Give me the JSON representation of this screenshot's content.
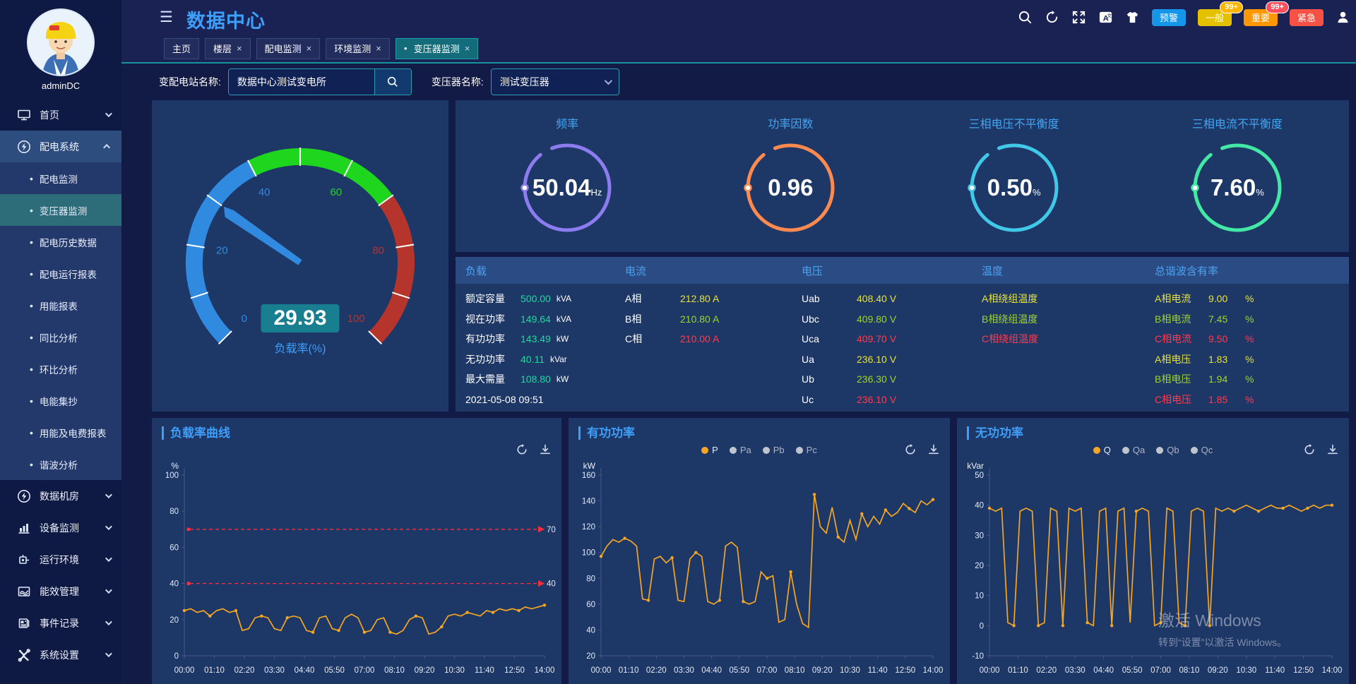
{
  "theme": {
    "accent_blue": "#3f9ef8",
    "panel_bg": "#1d3766",
    "teal": "#17949e",
    "line_orange": "#f5a623",
    "ref_red": "#ff2e3b"
  },
  "header": {
    "title": "数据中心",
    "icons": [
      "menu-collapse",
      "search",
      "refresh",
      "fullscreen",
      "translate",
      "theme-shirt",
      "user"
    ],
    "alarm_buttons": [
      {
        "label": "预警",
        "color": "#1596e8",
        "badge": ""
      },
      {
        "label": "一般",
        "color": "#e3c000",
        "badge": "99+"
      },
      {
        "label": "重要",
        "color": "#ff9800",
        "badge": "99+"
      },
      {
        "label": "紧急",
        "color": "#f55145",
        "badge": ""
      }
    ]
  },
  "tabs": [
    {
      "label": "主页",
      "closable": false,
      "active": false
    },
    {
      "label": "楼层",
      "closable": true,
      "active": false
    },
    {
      "label": "配电监测",
      "closable": true,
      "active": false
    },
    {
      "label": "环境监测",
      "closable": true,
      "active": false
    },
    {
      "label": "变压器监测",
      "closable": true,
      "active": true
    }
  ],
  "filters": {
    "station_label": "变配电站名称:",
    "station_value": "数据中心测试变电所",
    "transformer_label": "变压器名称:",
    "transformer_value": "测试变压器"
  },
  "sidebar": {
    "username": "adminDC",
    "items": [
      {
        "label": "首页"
      },
      {
        "label": "配电系统"
      },
      {
        "label": "配电监测"
      },
      {
        "label": "变压器监测"
      },
      {
        "label": "配电历史数据"
      },
      {
        "label": "配电运行报表"
      },
      {
        "label": "用能报表"
      },
      {
        "label": "同比分析"
      },
      {
        "label": "环比分析"
      },
      {
        "label": "电能集抄"
      },
      {
        "label": "用能及电费报表"
      },
      {
        "label": "谐波分析"
      },
      {
        "label": "数据机房"
      },
      {
        "label": "设备监测"
      },
      {
        "label": "运行环境"
      },
      {
        "label": "能效管理"
      },
      {
        "label": "事件记录"
      },
      {
        "label": "系统设置"
      }
    ]
  },
  "gauge": {
    "value": "29.93",
    "label": "负载率(%)",
    "ticks": [
      0,
      20,
      40,
      60,
      80,
      100
    ],
    "segments": [
      {
        "to": 40,
        "color": "#2f8ae0"
      },
      {
        "to": 70,
        "color": "#1fd61f"
      },
      {
        "to": 100,
        "color": "#b5352c"
      }
    ]
  },
  "rings": [
    {
      "title": "频率",
      "value": "50.04",
      "unit": "Hz",
      "color": "#8d7bf0"
    },
    {
      "title": "功率因数",
      "value": "0.96",
      "unit": "",
      "color": "#ff8a50"
    },
    {
      "title": "三相电压不平衡度",
      "value": "0.50",
      "unit": "%",
      "color": "#41c7e8"
    },
    {
      "title": "三相电流不平衡度",
      "value": "7.60",
      "unit": "%",
      "color": "#42e8a4"
    }
  ],
  "table": {
    "headers": [
      "负载",
      "电流",
      "电压",
      "温度",
      "总谐波含有率"
    ],
    "load_rows": [
      {
        "label": "额定容量",
        "value": "500.00",
        "unit": "kVA"
      },
      {
        "label": "视在功率",
        "value": "149.64",
        "unit": "kVA"
      },
      {
        "label": "有功功率",
        "value": "143.49",
        "unit": "kW"
      },
      {
        "label": "无功功率",
        "value": "40.11",
        "unit": "kVar"
      },
      {
        "label": "最大需量",
        "value": "108.80",
        "unit": "kW"
      },
      {
        "label": "",
        "value": "2021-05-08 09:51",
        "unit": ""
      }
    ],
    "current_rows": [
      {
        "label": "A相",
        "value": "212.80 A"
      },
      {
        "label": "B相",
        "value": "210.80 A"
      },
      {
        "label": "C相",
        "value": "210.00 A"
      }
    ],
    "voltage_rows": [
      {
        "label": "Uab",
        "value": "408.40 V"
      },
      {
        "label": "Ubc",
        "value": "409.80 V"
      },
      {
        "label": "Uca",
        "value": "409.70 V"
      },
      {
        "label": "Ua",
        "value": "236.10 V"
      },
      {
        "label": "Ub",
        "value": "236.30 V"
      },
      {
        "label": "Uc",
        "value": "236.10 V"
      }
    ],
    "temp_rows": [
      {
        "label": "A相绕组温度"
      },
      {
        "label": "B相绕组温度"
      },
      {
        "label": "C相绕组温度"
      }
    ],
    "thd_rows": [
      {
        "label": "A相电流",
        "value": "9.00",
        "unit": "%"
      },
      {
        "label": "B相电流",
        "value": "7.45",
        "unit": "%"
      },
      {
        "label": "C相电流",
        "value": "9.50",
        "unit": "%"
      },
      {
        "label": "A相电压",
        "value": "1.83",
        "unit": "%"
      },
      {
        "label": "B相电压",
        "value": "1.94",
        "unit": "%"
      },
      {
        "label": "C相电压",
        "value": "1.85",
        "unit": "%"
      }
    ]
  },
  "chart_data": [
    {
      "type": "line",
      "title": "负载率曲线",
      "ylabel": "%",
      "ylim": [
        0,
        100
      ],
      "yticks": [
        0,
        20,
        40,
        60,
        80,
        100
      ],
      "x_labels": [
        "00:00",
        "01:10",
        "02:20",
        "03:30",
        "04:40",
        "05:50",
        "07:00",
        "08:10",
        "09:20",
        "10:30",
        "11:40",
        "12:50",
        "14:00"
      ],
      "ref_lines": [
        {
          "value": 70,
          "label": "70"
        },
        {
          "value": 40,
          "label": "40"
        }
      ],
      "series": [
        {
          "name": "负载率",
          "color": "#f5a623",
          "values": [
            25,
            26,
            24,
            25,
            22,
            25,
            26,
            24,
            25,
            14,
            15,
            21,
            22,
            21,
            15,
            14,
            21,
            22,
            21,
            14,
            13,
            21,
            22,
            15,
            14,
            21,
            23,
            21,
            13,
            14,
            20,
            21,
            13,
            12,
            14,
            20,
            22,
            21,
            12,
            13,
            16,
            22,
            23,
            22,
            24,
            23,
            22,
            25,
            24,
            26,
            25,
            26,
            25,
            27,
            26,
            27,
            28
          ]
        }
      ]
    },
    {
      "type": "line",
      "title": "有功功率",
      "ylabel": "kW",
      "ylim": [
        20,
        160
      ],
      "yticks": [
        20,
        40,
        60,
        80,
        100,
        120,
        140,
        160
      ],
      "x_labels": [
        "00:00",
        "01:10",
        "02:20",
        "03:30",
        "04:40",
        "05:50",
        "07:00",
        "08:10",
        "09:20",
        "10:30",
        "11:40",
        "12:50",
        "14:00"
      ],
      "legend": [
        {
          "label": "P",
          "active": true
        },
        {
          "label": "Pa",
          "active": false
        },
        {
          "label": "Pb",
          "active": false
        },
        {
          "label": "Pc",
          "active": false
        }
      ],
      "series": [
        {
          "name": "P",
          "color": "#f5a623",
          "values": [
            97,
            105,
            110,
            108,
            111,
            109,
            105,
            64,
            63,
            95,
            97,
            92,
            96,
            63,
            62,
            95,
            100,
            97,
            62,
            60,
            63,
            105,
            108,
            104,
            62,
            60,
            62,
            85,
            80,
            82,
            46,
            48,
            85,
            60,
            45,
            42,
            145,
            120,
            115,
            135,
            112,
            108,
            125,
            110,
            130,
            120,
            128,
            122,
            133,
            128,
            131,
            138,
            134,
            131,
            140,
            137,
            141
          ]
        }
      ]
    },
    {
      "type": "line",
      "title": "无功功率",
      "ylabel": "kVar",
      "ylim": [
        -10,
        50
      ],
      "yticks": [
        -10,
        0,
        10,
        20,
        30,
        40,
        50
      ],
      "x_labels": [
        "00:00",
        "01:10",
        "02:20",
        "03:30",
        "04:40",
        "05:50",
        "07:00",
        "08:10",
        "09:20",
        "10:30",
        "11:40",
        "12:50",
        "14:00"
      ],
      "legend": [
        {
          "label": "Q",
          "active": true
        },
        {
          "label": "Qa",
          "active": false
        },
        {
          "label": "Qb",
          "active": false
        },
        {
          "label": "Qc",
          "active": false
        }
      ],
      "series": [
        {
          "name": "Q",
          "color": "#f5a623",
          "values": [
            39,
            38,
            39,
            1,
            0,
            38,
            39,
            38,
            0,
            1,
            39,
            38,
            0,
            39,
            38,
            39,
            1,
            0,
            38,
            39,
            0,
            38,
            39,
            1,
            38,
            39,
            38,
            0,
            1,
            39,
            38,
            1,
            0,
            38,
            39,
            38,
            0,
            39,
            38,
            39,
            38,
            39,
            40,
            39,
            38,
            39,
            40,
            39,
            39,
            40,
            39,
            38,
            39,
            40,
            39,
            40,
            40
          ]
        }
      ]
    }
  ],
  "watermark": {
    "line1": "激活 Windows",
    "line2": "转到“设置”以激活 Windows。"
  }
}
